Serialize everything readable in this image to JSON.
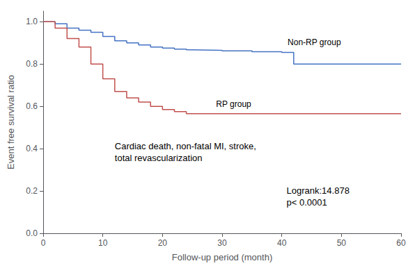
{
  "chart_data": {
    "type": "step",
    "xlabel": "Follow-up period (month)",
    "ylabel": "Event free survival ratio",
    "annotations": [
      "Cardiac death, non-fatal MI, stroke,\ntotal revascularization",
      "Logrank:14.878\np< 0.0001"
    ],
    "xlim": [
      0,
      60
    ],
    "ylim": [
      0.0,
      1.05
    ],
    "xticks": [
      0,
      10,
      20,
      30,
      40,
      50,
      60
    ],
    "yticks": [
      {
        "value": 0.0,
        "label": "0.0"
      },
      0.2,
      0.4,
      0.6,
      0.8,
      {
        "value": 1.0,
        "label": "1.0"
      }
    ],
    "grid": false,
    "series": [
      {
        "name": "Non-RP group",
        "color": "#4472C4",
        "x": [
          0,
          2,
          4,
          6,
          8,
          10,
          12,
          14,
          16,
          18,
          20,
          22,
          24,
          25,
          30,
          35,
          40,
          42,
          60
        ],
        "values": [
          1.0,
          0.99,
          0.97,
          0.96,
          0.95,
          0.93,
          0.91,
          0.9,
          0.89,
          0.88,
          0.875,
          0.87,
          0.867,
          0.865,
          0.862,
          0.858,
          0.855,
          0.8,
          0.8
        ]
      },
      {
        "name": "RP group",
        "color": "#C0504D",
        "x": [
          0,
          2,
          4,
          6,
          8,
          10,
          12,
          14,
          16,
          18,
          20,
          22,
          24,
          60
        ],
        "values": [
          1.0,
          0.97,
          0.92,
          0.88,
          0.8,
          0.73,
          0.67,
          0.64,
          0.62,
          0.6,
          0.585,
          0.575,
          0.565,
          0.565
        ]
      }
    ]
  }
}
